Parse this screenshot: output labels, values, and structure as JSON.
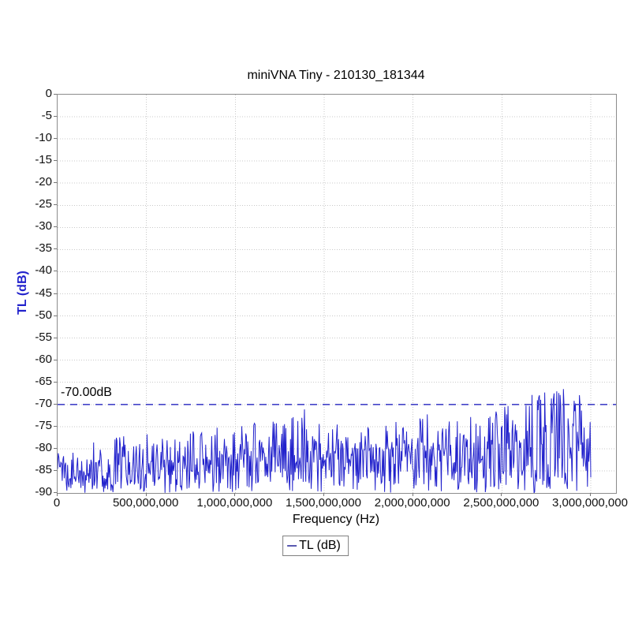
{
  "title": "miniVNA Tiny - 210130_181344",
  "axes": {
    "x_label": "Frequency (Hz)",
    "y_label": "TL (dB)",
    "y_label_color": "#2222cc",
    "x_tick_labels": [
      "0",
      "500,000,000",
      "1,000,000,000",
      "1,500,000,000",
      "2,000,000,000",
      "2,500,000,000",
      "3,000,000,000"
    ],
    "y_tick_labels": [
      "0",
      "-5",
      "-10",
      "-15",
      "-20",
      "-25",
      "-30",
      "-35",
      "-40",
      "-45",
      "-50",
      "-55",
      "-60",
      "-65",
      "-70",
      "-75",
      "-80",
      "-85",
      "-90"
    ]
  },
  "annotation": {
    "label": "-70.00dB",
    "y_db": -70,
    "style": "dashed",
    "color": "#4343c8"
  },
  "legend": {
    "label": "TL (dB)",
    "marker_color": "#5a5ab0",
    "position": "bottom"
  },
  "colors": {
    "trace": "#2222cc",
    "grid": "#c9c9c9",
    "plot_border": "#8c8c8c",
    "text": "#000000",
    "reference_line": "#4343c8"
  },
  "chart_data": {
    "type": "line",
    "title": "miniVNA Tiny - 210130_181344",
    "xlabel": "Frequency (Hz)",
    "ylabel": "TL (dB)",
    "xlim": [
      0,
      3142000000
    ],
    "ylim": [
      -90,
      0
    ],
    "grid": true,
    "legend_position": "bottom",
    "x_ticks_hz": [
      0,
      500000000,
      1000000000,
      1500000000,
      2000000000,
      2500000000,
      3000000000
    ],
    "y_ticks_db": [
      0,
      -5,
      -10,
      -15,
      -20,
      -25,
      -30,
      -35,
      -40,
      -45,
      -50,
      -55,
      -60,
      -65,
      -70,
      -75,
      -80,
      -85,
      -90
    ],
    "reference_line": {
      "y_db": -70,
      "label": "-70.00dB"
    },
    "series": [
      {
        "name": "TL (dB)",
        "color": "#2222cc",
        "x_start_hz": 0,
        "x_end_hz": 3000000000,
        "points": 800,
        "noise_seed": 20210130,
        "description": "Noisy transmission-loss trace; dense noise between the -90 dB floor and an upper envelope that rises from about -80 dB near 0 Hz to about -66 dB near 2.8 GHz, with peaks briefly exceeding -70 dB above 2.5 GHz and a local peak cluster near 1.4 GHz.",
        "envelope": {
          "x_hz": [
            0,
            150000000,
            400000000,
            700000000,
            1000000000,
            1250000000,
            1400000000,
            1550000000,
            1800000000,
            2050000000,
            2250000000,
            2450000000,
            2600000000,
            2800000000,
            2950000000,
            3000000000
          ],
          "max_db": [
            -80,
            -78.5,
            -77,
            -76,
            -74.5,
            -73,
            -70.8,
            -74.5,
            -74,
            -72,
            -73.5,
            -70,
            -67.5,
            -66,
            -66.5,
            -69
          ],
          "min_db": [
            -90,
            -90,
            -90,
            -90,
            -90,
            -90,
            -90,
            -90,
            -90,
            -90,
            -90,
            -90,
            -90,
            -90,
            -90,
            -90
          ]
        }
      }
    ]
  }
}
